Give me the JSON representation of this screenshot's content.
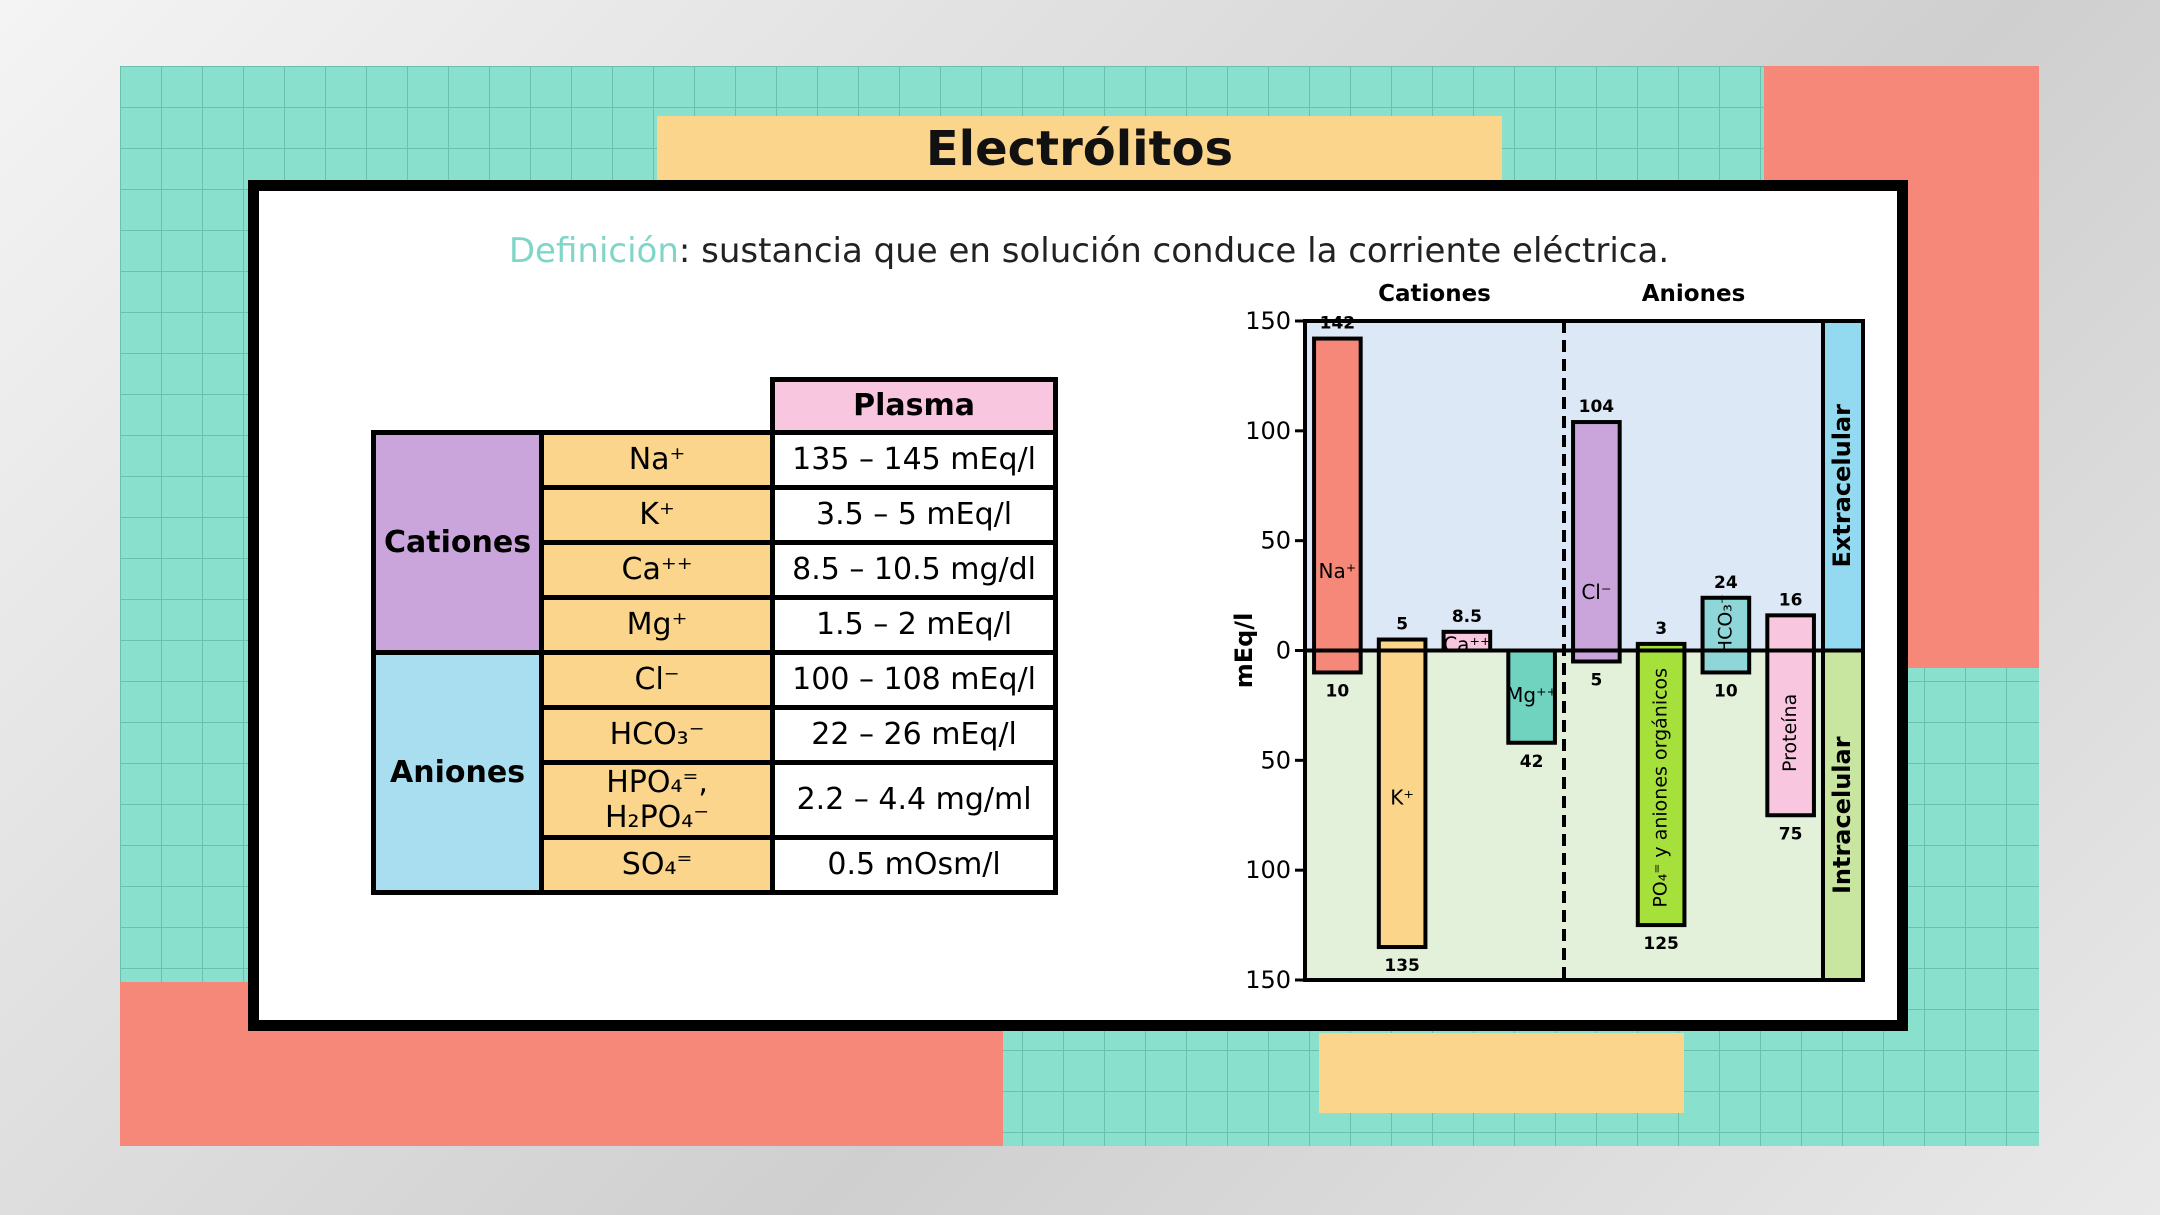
{
  "header": {
    "title": "Electrólitos"
  },
  "definition": {
    "term": "Definición",
    "text": ": sustancia que en solución conduce la corriente eléctrica."
  },
  "table": {
    "header": "Plasma",
    "groups": [
      {
        "name": "Cationes",
        "rows": [
          [
            "Na⁺",
            "135 – 145 mEq/l"
          ],
          [
            "K⁺",
            "3.5 – 5 mEq/l"
          ],
          [
            "Ca⁺⁺",
            "8.5 – 10.5 mg/dl"
          ],
          [
            "Mg⁺",
            "1.5 – 2 mEq/l"
          ]
        ]
      },
      {
        "name": "Aniones",
        "rows": [
          [
            "Cl⁻",
            "100 – 108 mEq/l"
          ],
          [
            "HCO₃⁻",
            "22 – 26 mEq/l"
          ],
          [
            "HPO₄⁼, H₂PO₄⁻",
            "2.2 – 4.4 mg/ml"
          ],
          [
            "SO₄⁼",
            "0.5 mOsm/l"
          ]
        ]
      }
    ]
  },
  "chart_data": {
    "type": "bar",
    "y_label": "mEq/l",
    "group_labels": [
      "Cationes",
      "Aniones"
    ],
    "categories": [
      "Na⁺",
      "K⁺",
      "Ca⁺⁺",
      "Mg⁺⁺",
      "Cl⁻",
      "PO₄⁼ y aniones orgánicos",
      "HCO₃⁻",
      "Proteína"
    ],
    "colors": [
      "#f58878",
      "#fad58a",
      "#f9c6df",
      "#6fd3c0",
      "#c9a5dc",
      "#a6e03a",
      "#8fd6d8",
      "#f9c6df"
    ],
    "series": [
      {
        "name": "Extracelular",
        "color": "#dce8f5",
        "strip_color": "#93d9ef",
        "values": [
          142,
          5,
          8.5,
          null,
          104,
          3,
          24,
          16
        ]
      },
      {
        "name": "Intracelular",
        "color": "#e3f0da",
        "strip_color": "#c8e6a0",
        "values": [
          -10,
          -135,
          null,
          -42,
          -5,
          -125,
          -10,
          -75
        ],
        "value_labels": [
          "10",
          "135",
          null,
          "42",
          "5",
          "125",
          "10",
          "75"
        ]
      }
    ],
    "ylim": [
      -150,
      150
    ],
    "yticks": [
      {
        "value": -150,
        "label": "150"
      },
      {
        "value": -100,
        "label": "100"
      },
      {
        "value": -50,
        "label": "50"
      },
      0,
      50,
      100,
      150
    ]
  }
}
